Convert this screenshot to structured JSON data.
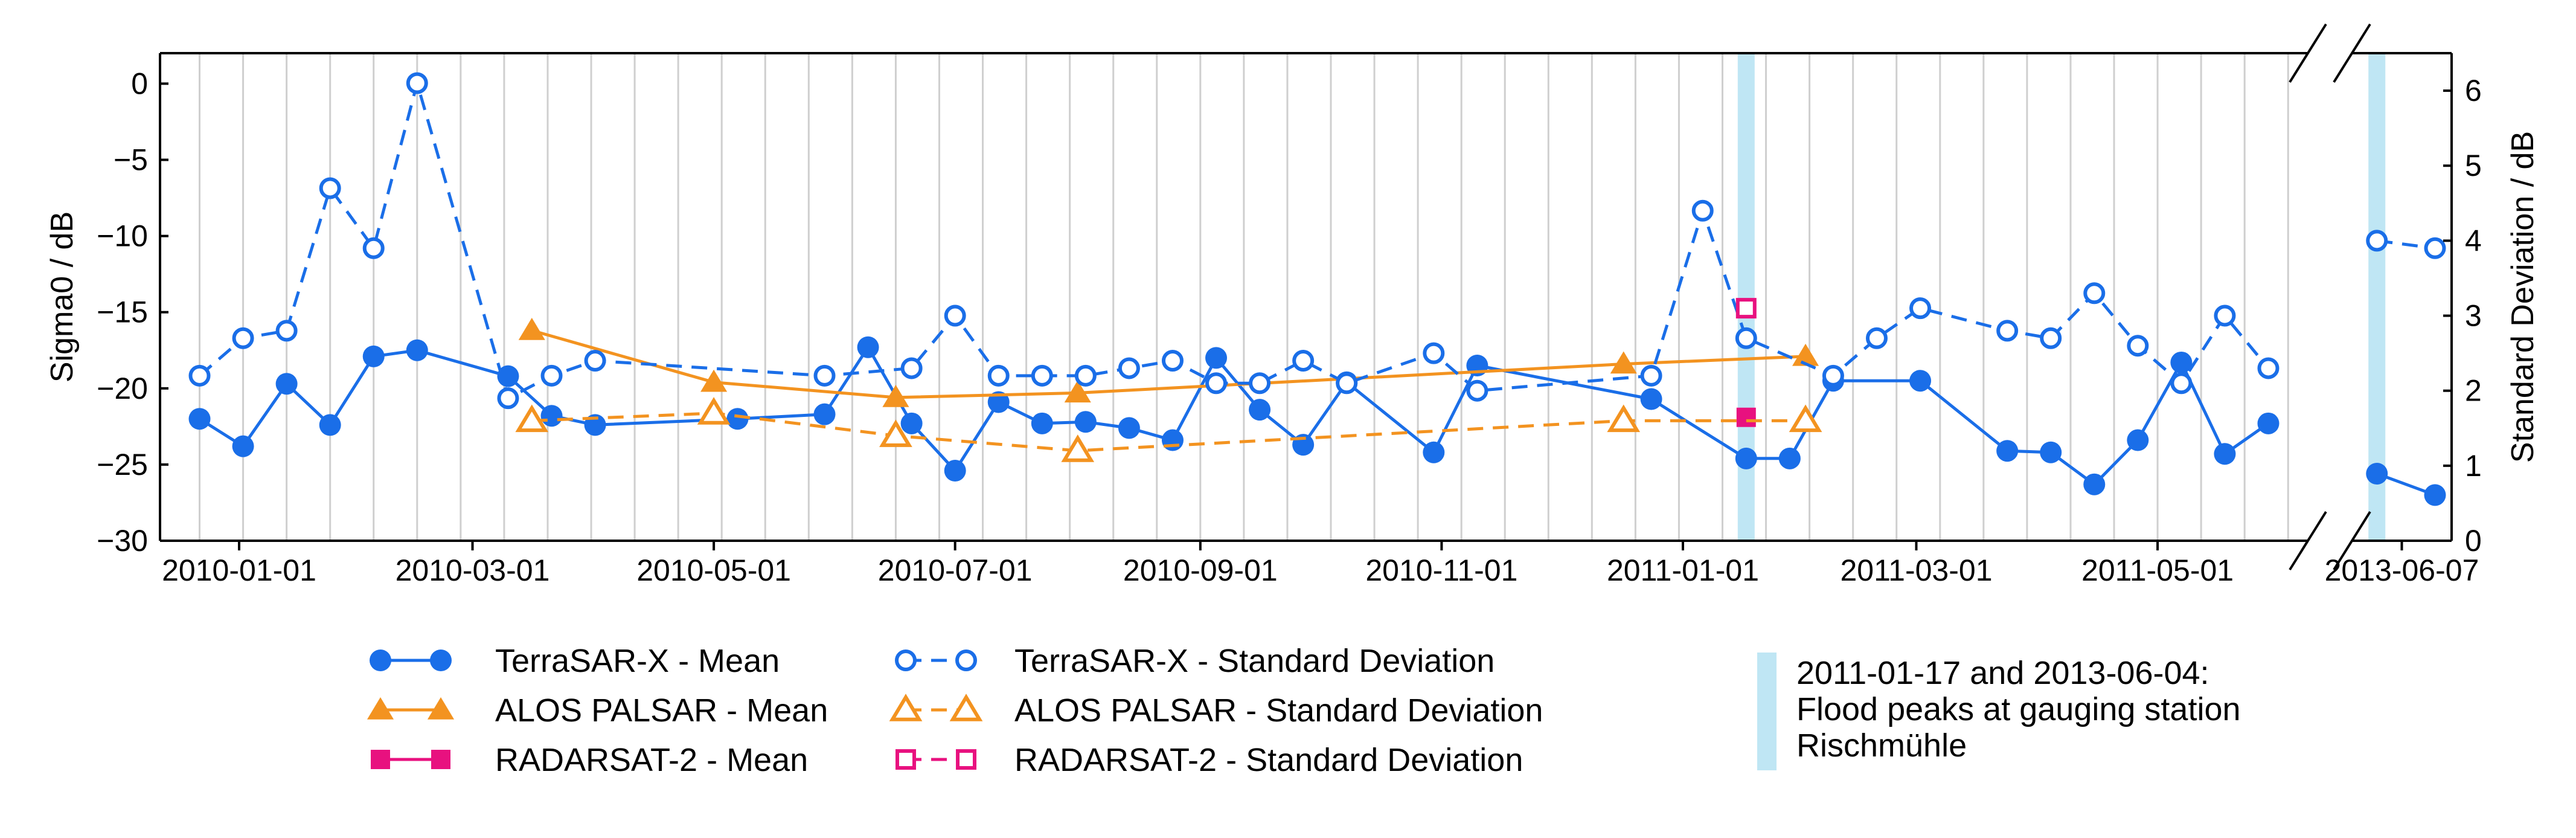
{
  "chart_data": {
    "type": "line",
    "xlabel": "",
    "ylabel_left": "Sigma0 / dB",
    "ylabel_right": "Standard Deviation / dB",
    "ylim_left": [
      -30,
      2
    ],
    "yticks_left": [
      0,
      -5,
      -10,
      -15,
      -20,
      -25,
      -30
    ],
    "ytick_labels_left": [
      "0",
      "−5",
      "−10",
      "−15",
      "−20",
      "−25",
      "−30"
    ],
    "ylim_right": [
      0,
      6.5
    ],
    "yticks_right": [
      0,
      1,
      2,
      3,
      4,
      5,
      6
    ],
    "ytick_labels_right": [
      "0",
      "1",
      "2",
      "3",
      "4",
      "5",
      "6"
    ],
    "xlim_main": [
      "2009-12-12",
      "2011-06-08"
    ],
    "xlim_inset": [
      "2013-06-01",
      "2013-06-13"
    ],
    "x_tick_labels": [
      "2010-01-01",
      "2010-03-01",
      "2010-05-01",
      "2010-07-01",
      "2010-09-01",
      "2010-11-01",
      "2011-01-01",
      "2011-03-01",
      "2011-05-01",
      "2013-06-07"
    ],
    "x_tick_dates": [
      "2010-01-01",
      "2010-03-01",
      "2010-05-01",
      "2010-07-01",
      "2010-09-01",
      "2010-11-01",
      "2011-01-01",
      "2011-03-01",
      "2011-05-01",
      "2013-06-07"
    ],
    "grid": "vertical lines every ~11 days",
    "axis_break": "between 2011-06 and 2013-06",
    "colors": {
      "terrasar": "#1a6ee8",
      "alos": "#f39320",
      "radarsat": "#e8117f",
      "flood": "#bfe6f4",
      "grid": "#cfcfcf"
    },
    "flood_peaks": [
      "2011-01-17",
      "2013-06-04"
    ],
    "series": [
      {
        "name": "TerraSAR-X - Mean",
        "axis": "left",
        "style": "solid",
        "marker": "circle-filled",
        "color_key": "terrasar",
        "segments": [
          [
            [
              "2009-12-22",
              -22.0
            ],
            [
              "2010-01-02",
              -23.8
            ],
            [
              "2010-01-13",
              -19.7
            ],
            [
              "2010-01-24",
              -22.4
            ],
            [
              "2010-02-04",
              -17.9
            ],
            [
              "2010-02-15",
              -17.5
            ],
            [
              "2010-03-10",
              -19.2
            ],
            [
              "2010-03-21",
              -21.8
            ],
            [
              "2010-04-01",
              -22.4
            ],
            [
              "2010-05-07",
              -22.0
            ],
            [
              "2010-05-29",
              -21.7
            ],
            [
              "2010-06-09",
              -17.3
            ],
            [
              "2010-06-20",
              -22.3
            ],
            [
              "2010-07-01",
              -25.4
            ],
            [
              "2010-07-12",
              -20.9
            ],
            [
              "2010-07-23",
              -22.3
            ],
            [
              "2010-08-03",
              -22.2
            ],
            [
              "2010-08-14",
              -22.6
            ],
            [
              "2010-08-25",
              -23.4
            ],
            [
              "2010-09-05",
              -18.0
            ],
            [
              "2010-09-16",
              -21.4
            ],
            [
              "2010-09-27",
              -23.7
            ],
            [
              "2010-10-08",
              -19.6
            ],
            [
              "2010-10-30",
              -24.2
            ],
            [
              "2010-11-10",
              -18.5
            ],
            [
              "2010-12-24",
              -20.7
            ],
            [
              "2011-01-17",
              -24.6
            ],
            [
              "2011-01-28",
              -24.6
            ],
            [
              "2011-02-08",
              -19.5
            ],
            [
              "2011-03-02",
              -19.5
            ],
            [
              "2011-03-24",
              -24.1
            ],
            [
              "2011-04-04",
              -24.2
            ],
            [
              "2011-04-15",
              -26.3
            ],
            [
              "2011-04-26",
              -23.4
            ],
            [
              "2011-05-07",
              -18.3
            ],
            [
              "2011-05-18",
              -24.3
            ],
            [
              "2011-05-29",
              -22.3
            ]
          ],
          [
            [
              "2013-06-04",
              -25.6
            ],
            [
              "2013-06-11",
              -27.0
            ]
          ]
        ]
      },
      {
        "name": "ALOS PALSAR - Mean",
        "axis": "left",
        "style": "solid",
        "marker": "triangle-filled",
        "color_key": "alos",
        "segments": [
          [
            [
              "2010-03-16",
              -16.2
            ],
            [
              "2010-05-01",
              -19.6
            ],
            [
              "2010-06-16",
              -20.6
            ],
            [
              "2010-08-01",
              -20.3
            ],
            [
              "2010-12-17",
              -18.4
            ],
            [
              "2011-02-01",
              -17.9
            ]
          ]
        ]
      },
      {
        "name": "RADARSAT-2 - Mean",
        "axis": "left",
        "style": "solid",
        "marker": "square-filled",
        "color_key": "radarsat",
        "segments": [
          [
            [
              "2011-01-17",
              -21.9
            ]
          ]
        ]
      },
      {
        "name": "TerraSAR-X - Standard Deviation",
        "axis": "right",
        "style": "dashed",
        "marker": "circle-open",
        "color_key": "terrasar",
        "segments": [
          [
            [
              "2009-12-22",
              2.2
            ],
            [
              "2010-01-02",
              2.7
            ],
            [
              "2010-01-13",
              2.8
            ],
            [
              "2010-01-24",
              4.7
            ],
            [
              "2010-02-04",
              3.9
            ],
            [
              "2010-02-15",
              6.1
            ],
            [
              "2010-03-10",
              1.9
            ],
            [
              "2010-03-21",
              2.2
            ],
            [
              "2010-04-01",
              2.4
            ],
            [
              "2010-05-29",
              2.2
            ],
            [
              "2010-06-20",
              2.3
            ],
            [
              "2010-07-01",
              3.0
            ],
            [
              "2010-07-12",
              2.2
            ],
            [
              "2010-07-23",
              2.2
            ],
            [
              "2010-08-03",
              2.2
            ],
            [
              "2010-08-14",
              2.3
            ],
            [
              "2010-08-25",
              2.4
            ],
            [
              "2010-09-05",
              2.1
            ],
            [
              "2010-09-16",
              2.1
            ],
            [
              "2010-09-27",
              2.4
            ],
            [
              "2010-10-08",
              2.1
            ],
            [
              "2010-10-30",
              2.5
            ],
            [
              "2010-11-10",
              2.0
            ],
            [
              "2010-12-24",
              2.2
            ],
            [
              "2011-01-06",
              4.4
            ],
            [
              "2011-01-17",
              2.7
            ],
            [
              "2011-02-08",
              2.2
            ],
            [
              "2011-02-19",
              2.7
            ],
            [
              "2011-03-02",
              3.1
            ],
            [
              "2011-03-24",
              2.8
            ],
            [
              "2011-04-04",
              2.7
            ],
            [
              "2011-04-15",
              3.3
            ],
            [
              "2011-04-26",
              2.6
            ],
            [
              "2011-05-07",
              2.1
            ],
            [
              "2011-05-18",
              3.0
            ],
            [
              "2011-05-29",
              2.3
            ]
          ],
          [
            [
              "2013-06-04",
              4.0
            ],
            [
              "2013-06-11",
              3.9
            ]
          ]
        ]
      },
      {
        "name": "ALOS PALSAR - Standard Deviation",
        "axis": "right",
        "style": "dashed",
        "marker": "triangle-open",
        "color_key": "alos",
        "segments": [
          [
            [
              "2010-03-16",
              1.6
            ],
            [
              "2010-05-01",
              1.7
            ],
            [
              "2010-06-16",
              1.4
            ],
            [
              "2010-08-01",
              1.2
            ],
            [
              "2010-12-17",
              1.6
            ],
            [
              "2011-02-01",
              1.6
            ]
          ]
        ]
      },
      {
        "name": "RADARSAT-2 - Standard Deviation",
        "axis": "right",
        "style": "dashed",
        "marker": "square-open",
        "color_key": "radarsat",
        "segments": [
          [
            [
              "2011-01-17",
              3.1
            ]
          ]
        ]
      }
    ],
    "legend": {
      "placement": "bottom",
      "entries": [
        {
          "label": "TerraSAR-X - Mean",
          "series": 0
        },
        {
          "label": "ALOS PALSAR - Mean",
          "series": 1
        },
        {
          "label": "RADARSAT-2 - Mean",
          "series": 2
        },
        {
          "label": "TerraSAR-X - Standard Deviation",
          "series": 3
        },
        {
          "label": "ALOS PALSAR - Standard Deviation",
          "series": 4
        },
        {
          "label": "RADARSAT-2 - Standard Deviation",
          "series": 5
        }
      ],
      "flood_lines": [
        "2011-01-17 and 2013-06-04:",
        "Flood peaks at gauging station",
        "Rischmühle"
      ]
    }
  }
}
